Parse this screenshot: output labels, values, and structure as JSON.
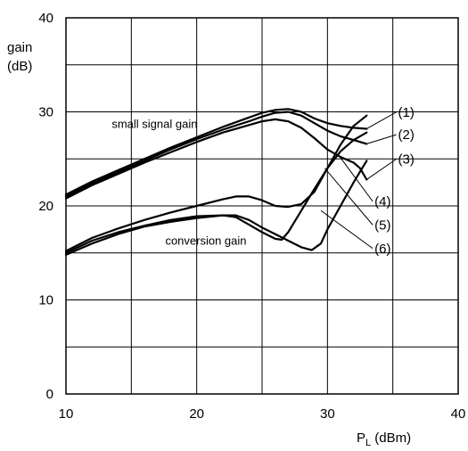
{
  "chart_data": {
    "type": "line",
    "xlabel": "P",
    "xlabel_sub": "L",
    "xlabel_unit": " (dBm)",
    "ylabel_line1": "gain",
    "ylabel_line2": "(dB)",
    "xlim": [
      10,
      40
    ],
    "ylim": [
      0,
      40
    ],
    "x_major_ticks": [
      10,
      20,
      30,
      40
    ],
    "y_major_ticks": [
      0,
      10,
      20,
      30,
      40
    ],
    "x_grid": [
      10,
      15,
      20,
      25,
      30,
      35,
      40
    ],
    "y_grid": [
      0,
      5,
      10,
      15,
      20,
      25,
      30,
      35,
      40
    ],
    "grid": true,
    "annotations": [
      {
        "text": "small signal gain",
        "x": 13.5,
        "y": 28.3
      },
      {
        "text": "conversion gain",
        "x": 17.6,
        "y": 15.9
      }
    ],
    "curve_labels": [
      {
        "text": "(1)",
        "x": 35.4,
        "y": 29.5,
        "leader_to": [
          33.0,
          28.2
        ]
      },
      {
        "text": "(2)",
        "x": 35.4,
        "y": 27.1,
        "leader_to": [
          33.0,
          26.6
        ]
      },
      {
        "text": "(3)",
        "x": 35.4,
        "y": 24.5,
        "leader_to": [
          33.0,
          22.8
        ]
      },
      {
        "text": "(4)",
        "x": 33.6,
        "y": 20.0,
        "leader_to": [
          30.8,
          25.5
        ]
      },
      {
        "text": "(5)",
        "x": 33.6,
        "y": 17.5,
        "leader_to": [
          29.8,
          24.0
        ]
      },
      {
        "text": "(6)",
        "x": 33.6,
        "y": 15.0,
        "leader_to": [
          29.5,
          19.5
        ]
      }
    ],
    "series": [
      {
        "values": [
          [
            10,
            21.2
          ],
          [
            12,
            22.6
          ],
          [
            14,
            23.8
          ],
          [
            16,
            25.0
          ],
          [
            18,
            26.2
          ],
          [
            20,
            27.3
          ],
          [
            22,
            28.4
          ],
          [
            24,
            29.4
          ],
          [
            25,
            29.9
          ],
          [
            26,
            30.2
          ],
          [
            27,
            30.3
          ],
          [
            28,
            30.0
          ],
          [
            29,
            29.3
          ],
          [
            30,
            28.8
          ],
          [
            31,
            28.5
          ],
          [
            32,
            28.3
          ],
          [
            33,
            28.2
          ]
        ]
      },
      {
        "values": [
          [
            10,
            21.0
          ],
          [
            12,
            22.4
          ],
          [
            14,
            23.6
          ],
          [
            16,
            24.8
          ],
          [
            18,
            26.0
          ],
          [
            20,
            27.1
          ],
          [
            22,
            28.1
          ],
          [
            24,
            29.0
          ],
          [
            25,
            29.5
          ],
          [
            26,
            29.9
          ],
          [
            27,
            30.0
          ],
          [
            28,
            29.6
          ],
          [
            29,
            28.8
          ],
          [
            30,
            28.0
          ],
          [
            31,
            27.4
          ],
          [
            32,
            27.0
          ],
          [
            33,
            26.6
          ]
        ]
      },
      {
        "values": [
          [
            10,
            20.8
          ],
          [
            12,
            22.2
          ],
          [
            14,
            23.4
          ],
          [
            16,
            24.6
          ],
          [
            18,
            25.7
          ],
          [
            20,
            26.8
          ],
          [
            22,
            27.8
          ],
          [
            24,
            28.6
          ],
          [
            25,
            29.0
          ],
          [
            26,
            29.2
          ],
          [
            27,
            29.0
          ],
          [
            28,
            28.3
          ],
          [
            29,
            27.2
          ],
          [
            30,
            26.0
          ],
          [
            31,
            25.2
          ],
          [
            32,
            24.6
          ],
          [
            32.5,
            24.0
          ],
          [
            33,
            22.8
          ]
        ]
      },
      {
        "values": [
          [
            10,
            15.2
          ],
          [
            12,
            16.6
          ],
          [
            14,
            17.6
          ],
          [
            16,
            18.5
          ],
          [
            18,
            19.3
          ],
          [
            20,
            20.0
          ],
          [
            22,
            20.7
          ],
          [
            23,
            21.0
          ],
          [
            24,
            21.0
          ],
          [
            25,
            20.6
          ],
          [
            26,
            20.0
          ],
          [
            27,
            19.9
          ],
          [
            28,
            20.2
          ],
          [
            29,
            21.5
          ],
          [
            30,
            24.0
          ],
          [
            31,
            26.5
          ],
          [
            32,
            28.5
          ],
          [
            33,
            29.6
          ]
        ]
      },
      {
        "values": [
          [
            10,
            15.0
          ],
          [
            12,
            16.3
          ],
          [
            14,
            17.2
          ],
          [
            16,
            17.9
          ],
          [
            18,
            18.5
          ],
          [
            20,
            18.9
          ],
          [
            22,
            19.0
          ],
          [
            23,
            18.8
          ],
          [
            24,
            18.0
          ],
          [
            25,
            17.2
          ],
          [
            26,
            16.5
          ],
          [
            26.5,
            16.4
          ],
          [
            27,
            17.2
          ],
          [
            28,
            19.5
          ],
          [
            29,
            21.8
          ],
          [
            30,
            24.0
          ],
          [
            31,
            25.8
          ],
          [
            32,
            27.0
          ],
          [
            33,
            27.8
          ]
        ]
      },
      {
        "values": [
          [
            10,
            14.8
          ],
          [
            12,
            16.0
          ],
          [
            14,
            17.0
          ],
          [
            16,
            17.8
          ],
          [
            18,
            18.3
          ],
          [
            20,
            18.7
          ],
          [
            22,
            19.0
          ],
          [
            23,
            19.0
          ],
          [
            24,
            18.5
          ],
          [
            25,
            17.7
          ],
          [
            26,
            17.0
          ],
          [
            27,
            16.3
          ],
          [
            28,
            15.6
          ],
          [
            28.8,
            15.3
          ],
          [
            29.5,
            16.0
          ],
          [
            30,
            17.5
          ],
          [
            31,
            20.0
          ],
          [
            32,
            22.5
          ],
          [
            33,
            24.8
          ]
        ]
      }
    ]
  }
}
